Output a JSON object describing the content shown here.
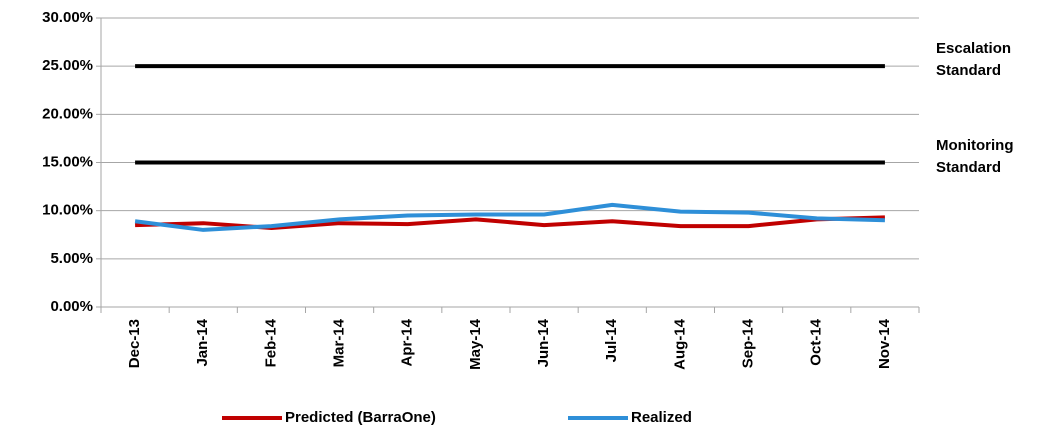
{
  "chart_data": {
    "type": "line",
    "categories": [
      "Dec-13",
      "Jan-14",
      "Feb-14",
      "Mar-14",
      "Apr-14",
      "May-14",
      "Jun-14",
      "Jul-14",
      "Aug-14",
      "Sep-14",
      "Oct-14",
      "Nov-14"
    ],
    "series": [
      {
        "name": "Predicted (BarraOne)",
        "color": "#c00000",
        "values": [
          8.5,
          8.7,
          8.2,
          8.7,
          8.6,
          9.1,
          8.5,
          8.9,
          8.4,
          8.4,
          9.1,
          9.3
        ]
      },
      {
        "name": "Realized",
        "color": "#2e8fd8",
        "values": [
          8.9,
          8.0,
          8.4,
          9.1,
          9.5,
          9.6,
          9.6,
          10.6,
          9.9,
          9.8,
          9.2,
          9.0
        ]
      }
    ],
    "reference_lines": [
      {
        "value": 25,
        "label": "Escalation Standard",
        "color": "#000000"
      },
      {
        "value": 15,
        "label": "Monitoring Standard",
        "color": "#000000"
      }
    ],
    "ylim": [
      0,
      30
    ],
    "yticks": [
      {
        "value": 0,
        "label": "0.00%"
      },
      {
        "value": 5,
        "label": "5.00%"
      },
      {
        "value": 10,
        "label": "10.00%"
      },
      {
        "value": 15,
        "label": "15.00%"
      },
      {
        "value": 20,
        "label": "20.00%"
      },
      {
        "value": 25,
        "label": "25.00%"
      },
      {
        "value": 30,
        "label": "30.00%"
      }
    ],
    "grid": true,
    "legend": "bottom"
  }
}
